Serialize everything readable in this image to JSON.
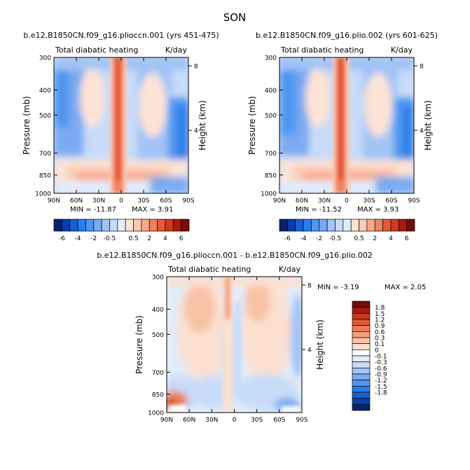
{
  "figure": {
    "title": "SON"
  },
  "colors": {
    "abs_scale": [
      "#08226e",
      "#0a3ea8",
      "#1560d8",
      "#2a7de8",
      "#4e96f0",
      "#7aaaf2",
      "#a2c3f6",
      "#c8dbf8",
      "#e2ecfa",
      "#fde3d6",
      "#fbcbb4",
      "#f8a98c",
      "#f0825e",
      "#e55a38",
      "#d13a20",
      "#a81a10",
      "#7a0c08"
    ],
    "diff_scale": [
      "#08226e",
      "#0a3ea8",
      "#1560d8",
      "#2a7de8",
      "#4e96f0",
      "#7aaaf2",
      "#a2c3f6",
      "#c8dbf8",
      "#e2ecfa",
      "#ffffff",
      "#fbe0d0",
      "#f8c2a6",
      "#f3a07c",
      "#ec7d56",
      "#e05a34",
      "#c8381c",
      "#a51a10",
      "#7a0808"
    ]
  },
  "chart_data": [
    {
      "type": "heatmap",
      "title": "b.e12.B1850CN.f09_g16.plioccn.001 (yrs 451-475)",
      "subtitle_left": "Total diabatic heating",
      "subtitle_right": "K/day",
      "xlabel": "",
      "ylabel": "Pressure (mb)",
      "ylabel_right": "Height (km)",
      "x_ticks": [
        "90N",
        "60N",
        "30N",
        "0",
        "30S",
        "60S",
        "90S"
      ],
      "y_ticks": [
        "300",
        "400",
        "500",
        "700",
        "850",
        "1000"
      ],
      "y_tick_values": [
        300,
        400,
        500,
        700,
        850,
        1000
      ],
      "right_ticks": [
        "8",
        "4"
      ],
      "right_tick_values": [
        8,
        4
      ],
      "min_label": "MIN = -11.87",
      "max_label": "MAX =   3.91",
      "min": -11.87,
      "max": 3.91,
      "colorbar_ticks": [
        "-6",
        "-4",
        "-2",
        "-0.5",
        "0.5",
        "2",
        "4",
        "6"
      ]
    },
    {
      "type": "heatmap",
      "title": "b.e12.B1850CN.f09_g16.plio.002 (yrs 601-625)",
      "subtitle_left": "Total diabatic heating",
      "subtitle_right": "K/day",
      "xlabel": "",
      "ylabel": "Pressure (mb)",
      "ylabel_right": "Height (km)",
      "x_ticks": [
        "90N",
        "60N",
        "30N",
        "0",
        "30S",
        "60S",
        "90S"
      ],
      "y_ticks": [
        "300",
        "400",
        "500",
        "700",
        "850",
        "1000"
      ],
      "y_tick_values": [
        300,
        400,
        500,
        700,
        850,
        1000
      ],
      "right_ticks": [
        "8",
        "4"
      ],
      "right_tick_values": [
        8,
        4
      ],
      "min_label": "MIN = -11.52",
      "max_label": "MAX =   3.93",
      "min": -11.52,
      "max": 3.93,
      "colorbar_ticks": [
        "-6",
        "-4",
        "-2",
        "-0.5",
        "0.5",
        "2",
        "4",
        "6"
      ]
    },
    {
      "type": "heatmap",
      "title": "b.e12.B1850CN.f09_g16.plioccn.001 - b.e12.B1850CN.f09_g16.plio.002",
      "subtitle_left": "Total diabatic heating",
      "subtitle_right": "K/day",
      "xlabel": "",
      "ylabel": "Pressure (mb)",
      "ylabel_right": "Height (km)",
      "x_ticks": [
        "90N",
        "60N",
        "30N",
        "0",
        "30S",
        "60S",
        "90S"
      ],
      "y_ticks": [
        "300",
        "400",
        "500",
        "700",
        "850",
        "1000"
      ],
      "y_tick_values": [
        300,
        400,
        500,
        700,
        850,
        1000
      ],
      "right_ticks": [
        "8",
        "4"
      ],
      "right_tick_values": [
        8,
        4
      ],
      "min_label": "MIN =   -3.19",
      "max_label": "MAX =   2.05",
      "min": -3.19,
      "max": 2.05,
      "colorbar_ticks": [
        "1.8",
        "1.5",
        "1.2",
        "0.9",
        "0.6",
        "0.3",
        "0.1",
        "0",
        "-0.1",
        "-0.3",
        "-0.6",
        "-0.9",
        "-1.2",
        "-1.5",
        "-1.8"
      ]
    }
  ]
}
